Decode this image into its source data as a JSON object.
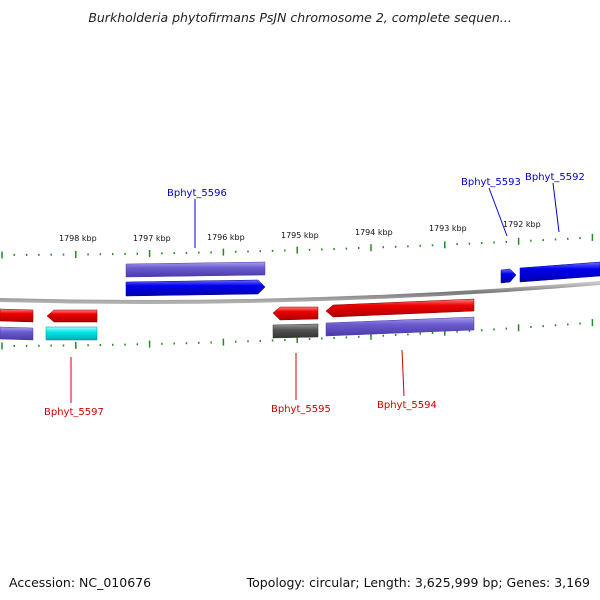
{
  "title": "Burkholderia phytofirmans PsJN chromosome 2, complete sequen...",
  "footer": {
    "accession": "Accession: NC_010676",
    "summary": "Topology: circular; Length: 3,625,999 bp; Genes: 3,169"
  },
  "scale_labels": [
    "1798 kbp",
    "1797 kbp",
    "1796 kbp",
    "1795 kbp",
    "1794 kbp",
    "1793 kbp",
    "1792 kbp"
  ],
  "gene_labels": {
    "bphyt_5592": "Bphyt_5592",
    "bphyt_5593": "Bphyt_5593",
    "bphyt_5594": "Bphyt_5594",
    "bphyt_5595": "Bphyt_5595",
    "bphyt_5596": "Bphyt_5596",
    "bphyt_5597": "Bphyt_5597"
  },
  "colors": {
    "forward_gene": "#0000ee",
    "reverse_gene": "#ee0000",
    "cds_feature": "#6a5acd",
    "rna_feature": "#00e5e5",
    "other_feature": "#555555",
    "backbone": "#888888",
    "tick": "#228b22",
    "forward_label": "#0000cc",
    "reverse_label": "#cc0000"
  },
  "icons": {
    "feature_arrow": "arrow-shape"
  }
}
